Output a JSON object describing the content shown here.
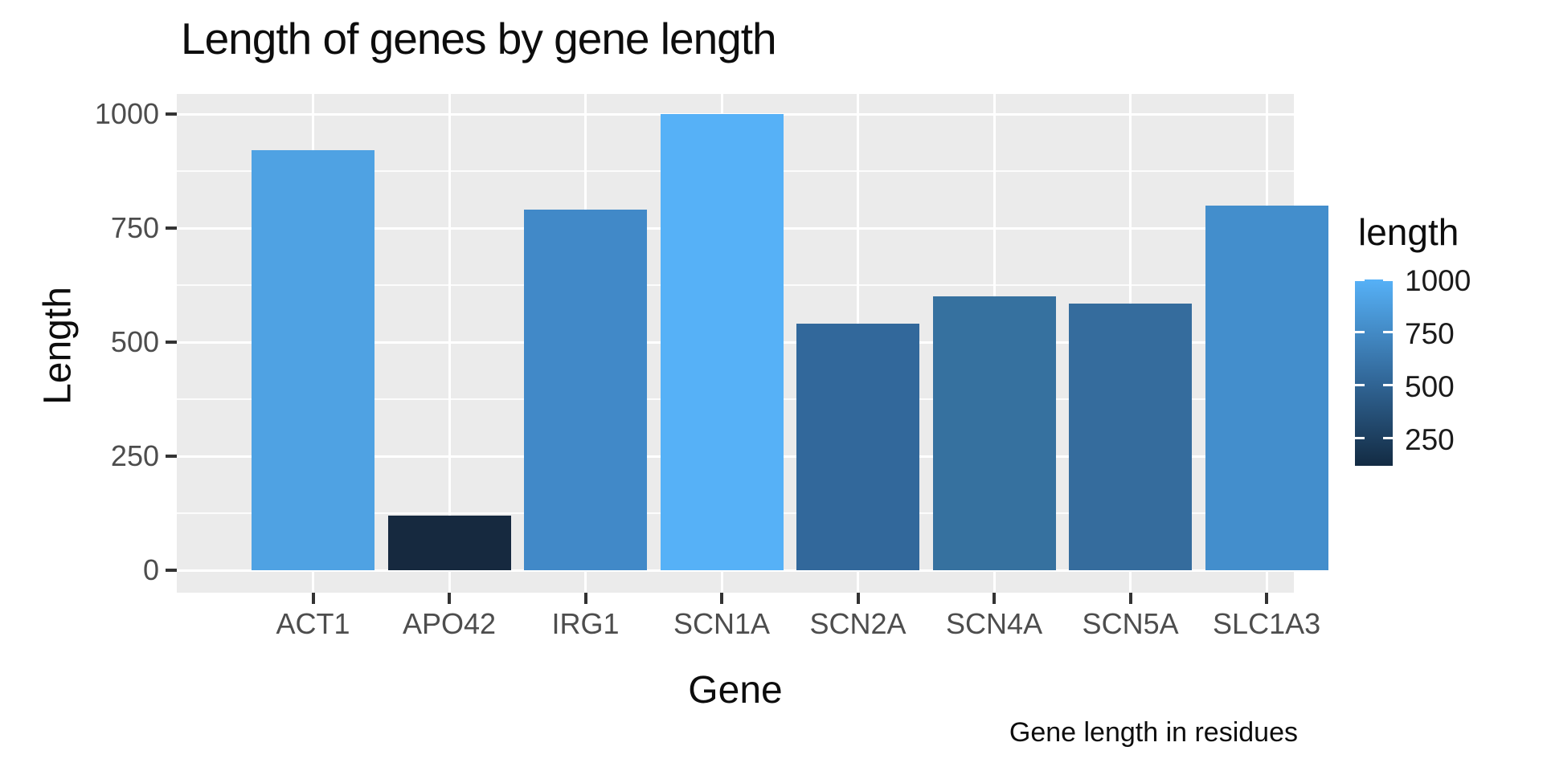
{
  "colors": {
    "background": "#ffffff",
    "panel_background": "#EBEBEB",
    "gridline": "#ffffff",
    "tick_mark": "#333333",
    "axis_text": "#4D4D4D",
    "title_text": "#0d0d0d"
  },
  "chart_data": {
    "type": "bar",
    "title": "Length of genes by gene length",
    "xlabel": "Gene",
    "ylabel": "Length",
    "caption": "Gene length in residues",
    "categories": [
      "ACT1",
      "APO42",
      "IRG1",
      "SCN1A",
      "SCN2A",
      "SCN4A",
      "SCN5A",
      "SLC1A3"
    ],
    "values": [
      920,
      120,
      790,
      1000,
      540,
      600,
      585,
      800
    ],
    "bar_colors": [
      "#4FA2E3",
      "#16293F",
      "#4189C8",
      "#56B1F7",
      "#32689B",
      "#36719F",
      "#356C9D",
      "#438ECC"
    ],
    "ylim": [
      0,
      1000
    ],
    "yticks": [
      0,
      250,
      500,
      750,
      1000
    ],
    "ytick_labels": [
      "0",
      "250",
      "500",
      "750",
      "1000"
    ],
    "minor_yticks": [
      125,
      375,
      625,
      875
    ],
    "grid": true,
    "legend": {
      "title": "length",
      "position": "right",
      "type": "colorbar",
      "range": [
        120,
        1000
      ],
      "ticks": [
        1000,
        750,
        500,
        250
      ],
      "tick_labels": [
        "1000",
        "750",
        "500",
        "250"
      ],
      "gradient_low": "#132B43",
      "gradient_mid": "#336A9C",
      "gradient_high": "#56B1F7"
    }
  }
}
